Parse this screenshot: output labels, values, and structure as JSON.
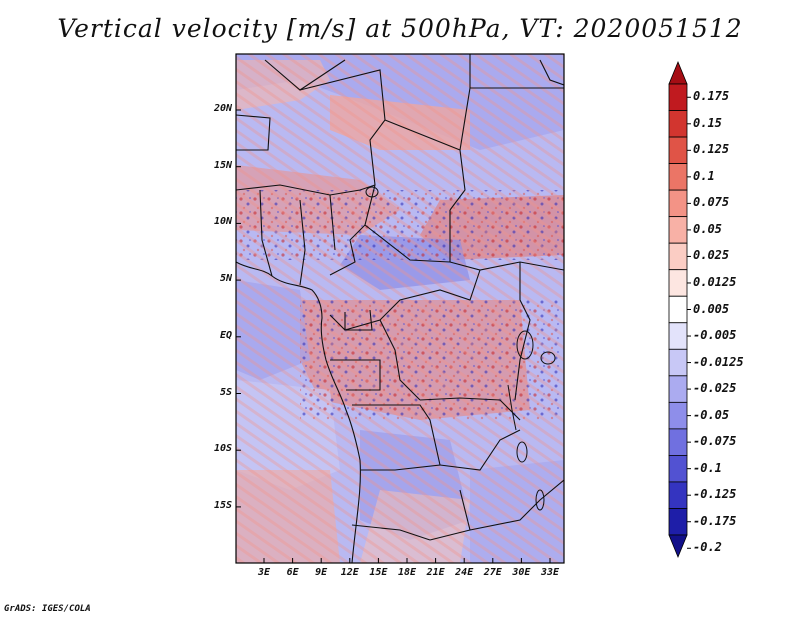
{
  "title": "Vertical velocity [m/s] at 500hPa, VT: 2020051512",
  "x_ticks": [
    "3E",
    "6E",
    "9E",
    "12E",
    "15E",
    "18E",
    "21E",
    "24E",
    "27E",
    "30E",
    "33E"
  ],
  "y_ticks": [
    "20N",
    "15N",
    "10N",
    "5N",
    "EQ",
    "5S",
    "10S",
    "15S"
  ],
  "colorbar": {
    "labels": [
      "0.175",
      "0.15",
      "0.125",
      "0.1",
      "0.075",
      "0.05",
      "0.025",
      "0.0125",
      "0.005",
      "-0.005",
      "-0.0125",
      "-0.025",
      "-0.05",
      "-0.075",
      "-0.1",
      "-0.125",
      "-0.175",
      "-0.2"
    ],
    "colors": [
      "#a50d14",
      "#c01a1f",
      "#d2352f",
      "#e05447",
      "#eb7566",
      "#f39386",
      "#f8b1a6",
      "#fbcdc4",
      "#fde6e1",
      "#ffffff",
      "#e3e3fb",
      "#c8c8f6",
      "#ababf0",
      "#8e8eea",
      "#7070e0",
      "#5252d2",
      "#3434c0",
      "#1e1ea8",
      "#12108a"
    ]
  },
  "credit": "GrADS: IGES/COLA"
}
